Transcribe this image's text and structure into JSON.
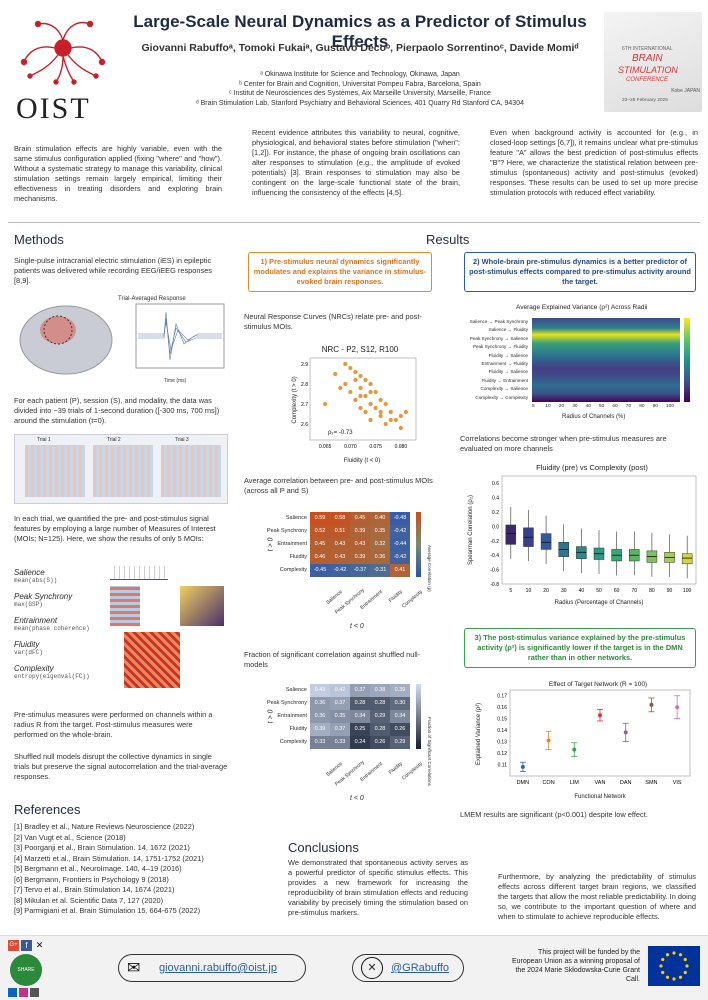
{
  "header": {
    "title": "Large-Scale Neural Dynamics as a Predictor of Stimulus Effects",
    "authors": "Giovanni Rabuffoᵃ, Tomoki Fukaiᵃ, Gustavo Decoᵇ, Pierpaolo Sorrentinoᶜ, Davide Momiᵈ",
    "affiliations": [
      "ᵃ Okinawa Institute for Science and Technology, Okinawa, Japan",
      "ᵇ Center for Brain and Cognition, Universitat Pompeu Fabra, Barcelona, Spain",
      "ᶜ Institut de Neurosciences des Systèmes, Aix Marseille University, Marseille, France",
      "ᵈ Brain Stimulation Lab, Stanford Psychiatry and Behavioral Sciences, 401 Quarry Rd Stanford CA, 94304"
    ],
    "logo_text": "OIST",
    "conference": {
      "line1": "6TH INTERNATIONAL",
      "line2": "BRAIN",
      "line3": "STIMULATION",
      "line4": "CONFERENCE",
      "place": "Kobe JAPAN",
      "dates": "23–26 February 2025"
    }
  },
  "intro": {
    "col1": "Brain stimulation effects are highly variable, even with the same stimulus configuration applied (fixing \"where\" and \"how\"). Without a systematic strategy to manage this variability, clinical stimulation settings remain largely empirical, limiting their effectiveness in treating disorders and exploring brain mechanisms.",
    "col2": "Recent evidence attributes this variability to neural, cognitive, physiological, and behavioral states before stimulation (\"when\"; [1,2]). For instance, the phase of ongoing brain oscillations can alter responses to stimulation (e.g., the amplitude of evoked potentials) [3]. Brain responses to stimulation may also be contingent on the large-scale functional state of the brain, influencing the consistency of the effects [4,5].",
    "col3": "Even when background activity is accounted for (e.g., in closed-loop settings [6,7]), it remains unclear what pre-stimulus feature \"A\" allows the best prediction of post-stimulus effects \"B\"? Here, we characterize the statistical relation between pre-stimulus (spontaneous) activity and post-stimulus (evoked) responses. These results can be used to set up more precise stimulation protocols with reduced effect variability."
  },
  "methods": {
    "heading": "Methods",
    "p1": "Single-pulse intracranial electric stimulation (iES) in epileptic patients was delivered while recording EEG/iEEG responses [8,9].",
    "trial_avg_title": "Trial-Averaged Response",
    "trial_avg_xlabel": "Time (ms)",
    "trial_avg_ylabel": "Signal intensity",
    "p2": "For each patient (P), session (S), and modality, the data was divided into ~39 trials of 1-second duration ([-300 ms, 700 ms]) around the stimulation (t=0).",
    "trial_labels": [
      "Trial 1",
      "Trial 2",
      "Trial 3"
    ],
    "p3": "In each trial, we quantified the pre- and post-stimulus signal features by employing a large number of Measures of Interest (MOIs; N=125). Here, we show the results of only 5 MOIs:",
    "mois": [
      {
        "name": "Salience",
        "def": "mean(abs(S))"
      },
      {
        "name": "Peak Synchrony",
        "def": "max(GSP)"
      },
      {
        "name": "Entrainment",
        "def": "mean(phase coherence)"
      },
      {
        "name": "Fluidity",
        "def": "var(dFC)"
      },
      {
        "name": "Complexity",
        "def": "entropy(eigenval(FC))"
      }
    ],
    "p4": "Pre-stimulus measures were performed on channels within a radius R from the target. Post-stimulus measures were performed on the whole-brain.",
    "p5": "Shuffled null models disrupt the collective dynamics in single trials but preserve the signal autocorrelation and the trial-average responses."
  },
  "results": {
    "heading": "Results",
    "box1": "1) Pre-stimulus neural dynamics significantly modulates and explains the variance in stimulus-evoked brain responses.",
    "nrc_text": "Neural Response Curves (NRCs) relate pre- and post-stimulus MOIs.",
    "scatter_title": "NRC - P2, S12, R100",
    "scatter_ann": "ρ₂= -0.73",
    "avg_corr_text": "Average correlation between pre- and post-stimulus MOIs (across all P and S)",
    "frac_text": "Fraction of significant correlation against shuffled null-models",
    "box2": "2) Whole-brain pre-stimulus dynamics is a better predictor of post-stimulus effects compared to pre-stimulus activity around the target.",
    "radii_title": "Average Explained Variance (ρ²) Across Radii",
    "radii_xlabel": "Radius of Channels (%)",
    "radii_cbar": "Explained Variance (ρ²)",
    "corr_text": "Correlations become stronger when pre-stimulus measures are evaluated on more channels",
    "box_title": "Fluidity (pre) vs Complexity (post)",
    "box_xlabel": "Radius (Percentage of Channels)",
    "box_ylabel": "Spearman Correlation (ρ₂)",
    "box3": "3) The post-stimulus variance explained by the pre-stimulus activity (ρ²) is significantly lower if the target is in the DMN rather than in other networks.",
    "net_title": "Effect of Target Network (R = 100)",
    "net_xlabel": "Functional Network",
    "net_ylabel": "Explained Variance (ρ²)",
    "lmem": "LMEM results are significant (p<0.001) despite low effect."
  },
  "chart_data": [
    {
      "type": "scatter",
      "title": "NRC - P2, S12, R100",
      "xlabel": "Fluidity (t < 0)",
      "ylabel": "Complexity (t > 0)",
      "xlim": [
        0.062,
        0.083
      ],
      "ylim": [
        2.52,
        2.93
      ],
      "x": [
        0.065,
        0.067,
        0.069,
        0.07,
        0.07,
        0.071,
        0.071,
        0.072,
        0.072,
        0.072,
        0.073,
        0.073,
        0.073,
        0.074,
        0.074,
        0.074,
        0.075,
        0.075,
        0.076,
        0.076,
        0.077,
        0.077,
        0.078,
        0.079,
        0.08,
        0.08,
        0.081,
        0.068,
        0.069,
        0.071,
        0.072,
        0.074,
        0.076,
        0.078
      ],
      "y": [
        2.7,
        2.85,
        2.8,
        2.88,
        2.76,
        2.86,
        2.72,
        2.84,
        2.78,
        2.68,
        2.82,
        2.74,
        2.66,
        2.8,
        2.7,
        2.62,
        2.76,
        2.68,
        2.72,
        2.64,
        2.7,
        2.6,
        2.66,
        2.62,
        2.64,
        2.58,
        2.66,
        2.78,
        2.9,
        2.82,
        2.74,
        2.76,
        2.66,
        2.62
      ],
      "color": "#e8963a"
    },
    {
      "type": "heatmap",
      "title": "",
      "xlabel": "t < 0",
      "ylabel": "t > 0",
      "rows": [
        "Salience",
        "Peak Synchrony",
        "Entrainment",
        "Fluidity",
        "Complexity"
      ],
      "cols": [
        "Salience",
        "Peak Synchrony",
        "Entrainment",
        "Fluidity",
        "Complexity"
      ],
      "values": [
        [
          0.59,
          0.58,
          0.45,
          0.4,
          -0.48
        ],
        [
          0.52,
          0.51,
          0.39,
          0.35,
          -0.42
        ],
        [
          0.45,
          0.43,
          0.43,
          0.32,
          -0.44
        ],
        [
          0.46,
          0.43,
          0.39,
          0.36,
          -0.42
        ],
        [
          -0.45,
          -0.42,
          -0.37,
          -0.31,
          0.41
        ]
      ],
      "colorbar_label": "Average Correlation (ρ)",
      "vlim": [
        -0.6,
        0.6
      ]
    },
    {
      "type": "heatmap",
      "title": "",
      "xlabel": "t < 0",
      "ylabel": "t > 0",
      "rows": [
        "Salience",
        "Peak Synchrony",
        "Entrainment",
        "Fluidity",
        "Complexity"
      ],
      "cols": [
        "Salience",
        "Peak Synchrony",
        "Entrainment",
        "Fluidity",
        "Complexity"
      ],
      "values": [
        [
          0.43,
          0.42,
          0.37,
          0.38,
          0.39
        ],
        [
          0.36,
          0.37,
          0.28,
          0.28,
          0.3
        ],
        [
          0.36,
          0.35,
          0.34,
          0.29,
          0.34
        ],
        [
          0.39,
          0.37,
          0.25,
          0.28,
          0.26
        ],
        [
          0.33,
          0.33,
          0.24,
          0.26,
          0.29
        ]
      ],
      "colorbar_label": "Fraction of Significant Correlations",
      "vlim": [
        0.2,
        0.45
      ]
    },
    {
      "type": "heatmap",
      "title": "Average Explained Variance (ρ²) Across Radii",
      "xlabel": "Radius of Channels (%)",
      "cols": [
        "5",
        "10",
        "20",
        "30",
        "40",
        "50",
        "60",
        "70",
        "80",
        "90",
        "100"
      ],
      "rows": [
        "Salience → Peak Synchrony",
        "Salience → Fluidity",
        "Peak Synchrony → Salience",
        "Peak Synchrony → Fluidity",
        "Fluidity → Salience",
        "Entrainment → Fluidity",
        "Fluidity → Salience",
        "Fluidity → Entrainment",
        "Complexity → Salience",
        "Complexity → Complexity"
      ],
      "colorbar_label": "Explained Variance (ρ²)",
      "vlim": [
        0.0,
        0.4
      ]
    },
    {
      "type": "box",
      "title": "Fluidity (pre) vs Complexity (post)",
      "xlabel": "Radius (Percentage of Channels)",
      "ylabel": "Spearman Correlation (ρ₂)",
      "categories": [
        "5",
        "10",
        "20",
        "30",
        "40",
        "50",
        "60",
        "70",
        "80",
        "90",
        "100"
      ],
      "medians": [
        -0.1,
        -0.15,
        -0.22,
        -0.32,
        -0.36,
        -0.38,
        -0.4,
        -0.4,
        -0.42,
        -0.43,
        -0.44
      ],
      "q1": [
        -0.25,
        -0.28,
        -0.32,
        -0.42,
        -0.45,
        -0.46,
        -0.48,
        -0.48,
        -0.5,
        -0.5,
        -0.52
      ],
      "q3": [
        0.02,
        -0.02,
        -0.1,
        -0.22,
        -0.28,
        -0.3,
        -0.32,
        -0.32,
        -0.34,
        -0.36,
        -0.38
      ],
      "ylim": [
        -0.8,
        0.7
      ]
    },
    {
      "type": "scatter",
      "title": "Effect of Target Network (R = 100)",
      "xlabel": "Functional Network",
      "ylabel": "Explained Variance (ρ²)",
      "categories": [
        "DMN",
        "CON",
        "LIM",
        "VAN",
        "DAN",
        "SMN",
        "VIS"
      ],
      "values": [
        0.108,
        0.131,
        0.123,
        0.153,
        0.138,
        0.162,
        0.16
      ],
      "errors": [
        0.004,
        0.008,
        0.006,
        0.005,
        0.008,
        0.006,
        0.01
      ],
      "colors": [
        "#2b6cb0",
        "#e08b2c",
        "#3aa24a",
        "#d9343a",
        "#8a5fb0",
        "#8c5a3c",
        "#d96ab5"
      ],
      "ylim": [
        0.1,
        0.175
      ]
    }
  ],
  "references": {
    "heading": "References",
    "items": [
      "[1] Bradley et al., Nature Reviews Neuroscience (2022)",
      "[2] Van Vugt et al., Science (2018)",
      "[3] Poorganji et al., Brain Stimulation. 14, 1672 (2021)",
      "[4] Marzetti et al., Brain Stimulation. 14, 1751-1752 (2021)",
      "[5] Bergmann et al., NeuroImage. 140, 4–19 (2016)",
      "[6] Bergmann, Frontiers in Psychology 9 (2018)",
      "[7] Tervo et al., Brain Stimulation 14, 1674 (2021)",
      "[8] Mikulan et al. Scientific Data 7, 127 (2020)",
      "[9] Parmigiani et al. Brain Stimulation 15, 664-675 (2022)"
    ]
  },
  "conclusions": {
    "heading": "Conclusions",
    "p1": "We demonstrated that spontaneous activity serves as a powerful predictor of specific stimulus effects. This provides a new framework for increasing the reproducibility of brain stimulation effects and reducing variability by precisely timing the stimulation based on pre-stimulus markers.",
    "p2": "Furthermore, by analyzing the predictability of stimulus effects across different target brain regions, we classified the targets that allow the most reliable predictability. In doing so, we contribute to the important question of where and when to stimulate to achieve reproducible effects."
  },
  "footer": {
    "email": "giovanni.rabuffo@oist.jp",
    "handle": "@GRabuffo",
    "funding": "This project will be funded by the European Union as a winning proposal of the 2024 Marie Skłodowska-Curie Grant Call.",
    "share_label": "SHARE"
  },
  "colors": {
    "title": "#1f2a44",
    "orange": "#e08b2c",
    "blue": "#2a5ea8",
    "green": "#3aa24a",
    "eu_blue": "#003399",
    "eu_star": "#ffcc00"
  }
}
